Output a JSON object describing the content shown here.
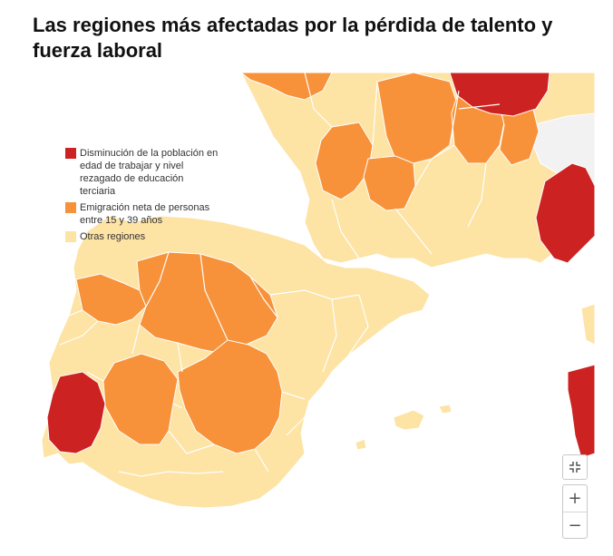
{
  "title": "Las regiones más afectadas por la pérdida de talento y fuerza laboral",
  "legend": [
    {
      "label": "Disminución de la población en edad de trabajar y nivel rezagado de educación terciaria",
      "color": "#cc2222"
    },
    {
      "label": "Emigración neta de personas entre 15 y 39 años",
      "color": "#f7923a"
    },
    {
      "label": "Otras regiones",
      "color": "#fde3a4"
    }
  ],
  "colors": {
    "decline": "#cc2222",
    "emigration": "#f7923a",
    "other": "#fde3a4",
    "no_data": "#f2f2f2",
    "sea": "#ffffff",
    "border": "#ffffff"
  },
  "controls": {
    "fullscreen_icon": "fullscreen-exit-icon",
    "zoom_in": "+",
    "zoom_out": "−"
  }
}
